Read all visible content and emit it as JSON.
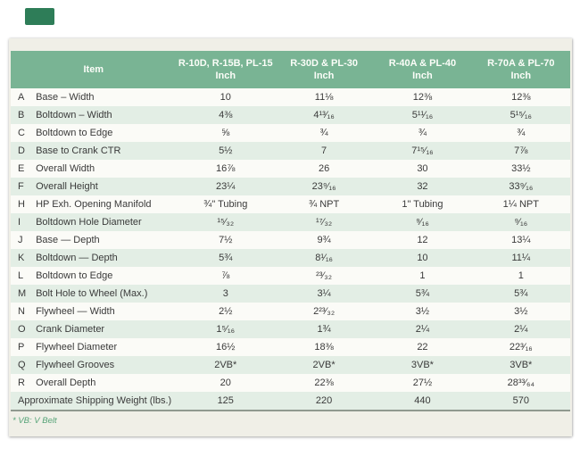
{
  "page": {
    "logo_color": "#2e7d58",
    "panel_background": "#f0efe7",
    "header_background": "#79b494",
    "stripe_color": "#e3eee5"
  },
  "table": {
    "item_header": "Item",
    "unit_label": "Inch",
    "column_headers": [
      {
        "line1": "R-10D, R-15B, PL-15",
        "line2": "Inch"
      },
      {
        "line1": "R-30D & PL-30",
        "line2": "Inch"
      },
      {
        "line1": "R-40A & PL-40",
        "line2": "Inch"
      },
      {
        "line1": "R-70A & PL-70",
        "line2": "Inch"
      }
    ],
    "rows": [
      {
        "letter": "A",
        "item": "Base – Width",
        "values": [
          "10",
          "11⅛",
          "12⅜",
          "12⅜"
        ]
      },
      {
        "letter": "B",
        "item": "Boltdown – Width",
        "values": [
          "4⅜",
          "4¹³⁄₁₆",
          "5¹¹⁄₁₆",
          "5¹⁵⁄₁₆"
        ]
      },
      {
        "letter": "C",
        "item": "Boltdown to Edge",
        "values": [
          "⅝",
          "¾",
          "¾",
          "¾"
        ]
      },
      {
        "letter": "D",
        "item": "Base to Crank CTR",
        "values": [
          "5½",
          "7",
          "7¹⁵⁄₁₆",
          "7⅞"
        ]
      },
      {
        "letter": "E",
        "item": "Overall Width",
        "values": [
          "16⅞",
          "26",
          "30",
          "33½"
        ]
      },
      {
        "letter": "F",
        "item": "Overall Height",
        "values": [
          "23¼",
          "23⁹⁄₁₆",
          "32",
          "33⁹⁄₁₆"
        ]
      },
      {
        "letter": "H",
        "item": "HP Exh. Opening Manifold",
        "values": [
          "¾\" Tubing",
          "¾ NPT",
          "1\" Tubing",
          "1¼ NPT"
        ]
      },
      {
        "letter": "I",
        "item": "Boltdown Hole Diameter",
        "values": [
          "¹⁵⁄₃₂",
          "¹⁷⁄₃₂",
          "⁹⁄₁₆",
          "⁹⁄₁₆"
        ]
      },
      {
        "letter": "J",
        "item": "Base — Depth",
        "values": [
          "7½",
          "9¾",
          "12",
          "13¼"
        ]
      },
      {
        "letter": "K",
        "item": "Boltdown — Depth",
        "values": [
          "5¾",
          "8¹⁄₁₆",
          "10",
          "11¼"
        ]
      },
      {
        "letter": "L",
        "item": "Boltdown to Edge",
        "values": [
          "⅞",
          "²³⁄₃₂",
          "1",
          "1"
        ]
      },
      {
        "letter": "M",
        "item": "Bolt Hole to Wheel (Max.)",
        "values": [
          "3",
          "3¼",
          "5¾",
          "5¾"
        ]
      },
      {
        "letter": "N",
        "item": "Flywheel — Width",
        "values": [
          "2½",
          "2²³⁄₃₂",
          "3½",
          "3½"
        ]
      },
      {
        "letter": "O",
        "item": "Crank Diameter",
        "values": [
          "1⁵⁄₁₆",
          "1¾",
          "2¼",
          "2¼"
        ]
      },
      {
        "letter": "P",
        "item": "Flywheel Diameter",
        "values": [
          "16½",
          "18⅜",
          "22",
          "22³⁄₁₆"
        ]
      },
      {
        "letter": "Q",
        "item": "Flywheel Grooves",
        "values": [
          "2VB*",
          "2VB*",
          "3VB*",
          "3VB*"
        ]
      },
      {
        "letter": "R",
        "item": "Overall Depth",
        "values": [
          "20",
          "22⅜",
          "27½",
          "28³³⁄₆₄"
        ]
      }
    ],
    "summary_row": {
      "label": "Approximate Shipping Weight (lbs.)",
      "values": [
        "125",
        "220",
        "440",
        "570"
      ]
    }
  },
  "footnote": "* VB: V Belt"
}
